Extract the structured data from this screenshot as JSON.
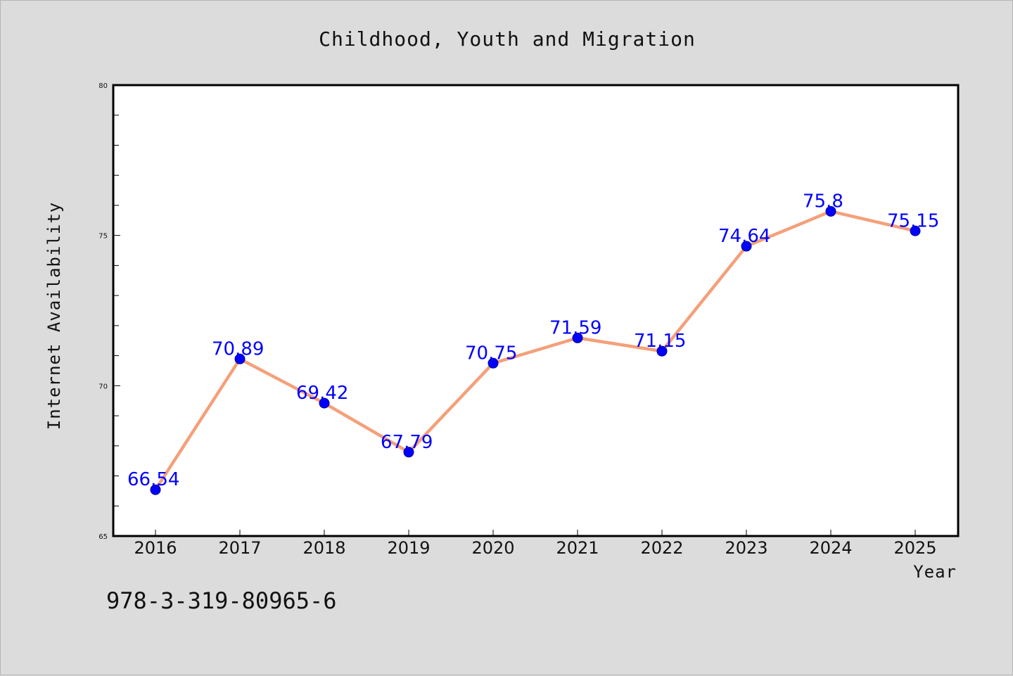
{
  "chart_data": {
    "type": "line",
    "title": "Childhood, Youth and Migration",
    "xlabel": "Year",
    "ylabel": "Internet Availability",
    "categories": [
      "2016",
      "2017",
      "2018",
      "2019",
      "2020",
      "2021",
      "2022",
      "2023",
      "2024",
      "2025"
    ],
    "values": [
      66.54,
      70.89,
      69.42,
      67.79,
      70.75,
      71.59,
      71.15,
      74.64,
      75.8,
      75.15
    ],
    "data_labels": [
      "66.54",
      "70.89",
      "69.42",
      "67.79",
      "70.75",
      "71.59",
      "71.15",
      "74.64",
      "75.8",
      "75.15"
    ],
    "ylim": [
      65,
      80
    ],
    "yticks": [
      "65",
      "70",
      "75",
      "80"
    ],
    "grid": false,
    "legend": "none",
    "colors": {
      "line": "#f4a07a",
      "marker": "#0000ff",
      "data_label": "#0000ff",
      "background": "#dcdcdc",
      "plot_background": "#ffffff"
    }
  },
  "footnote": "978-3-319-80965-6"
}
